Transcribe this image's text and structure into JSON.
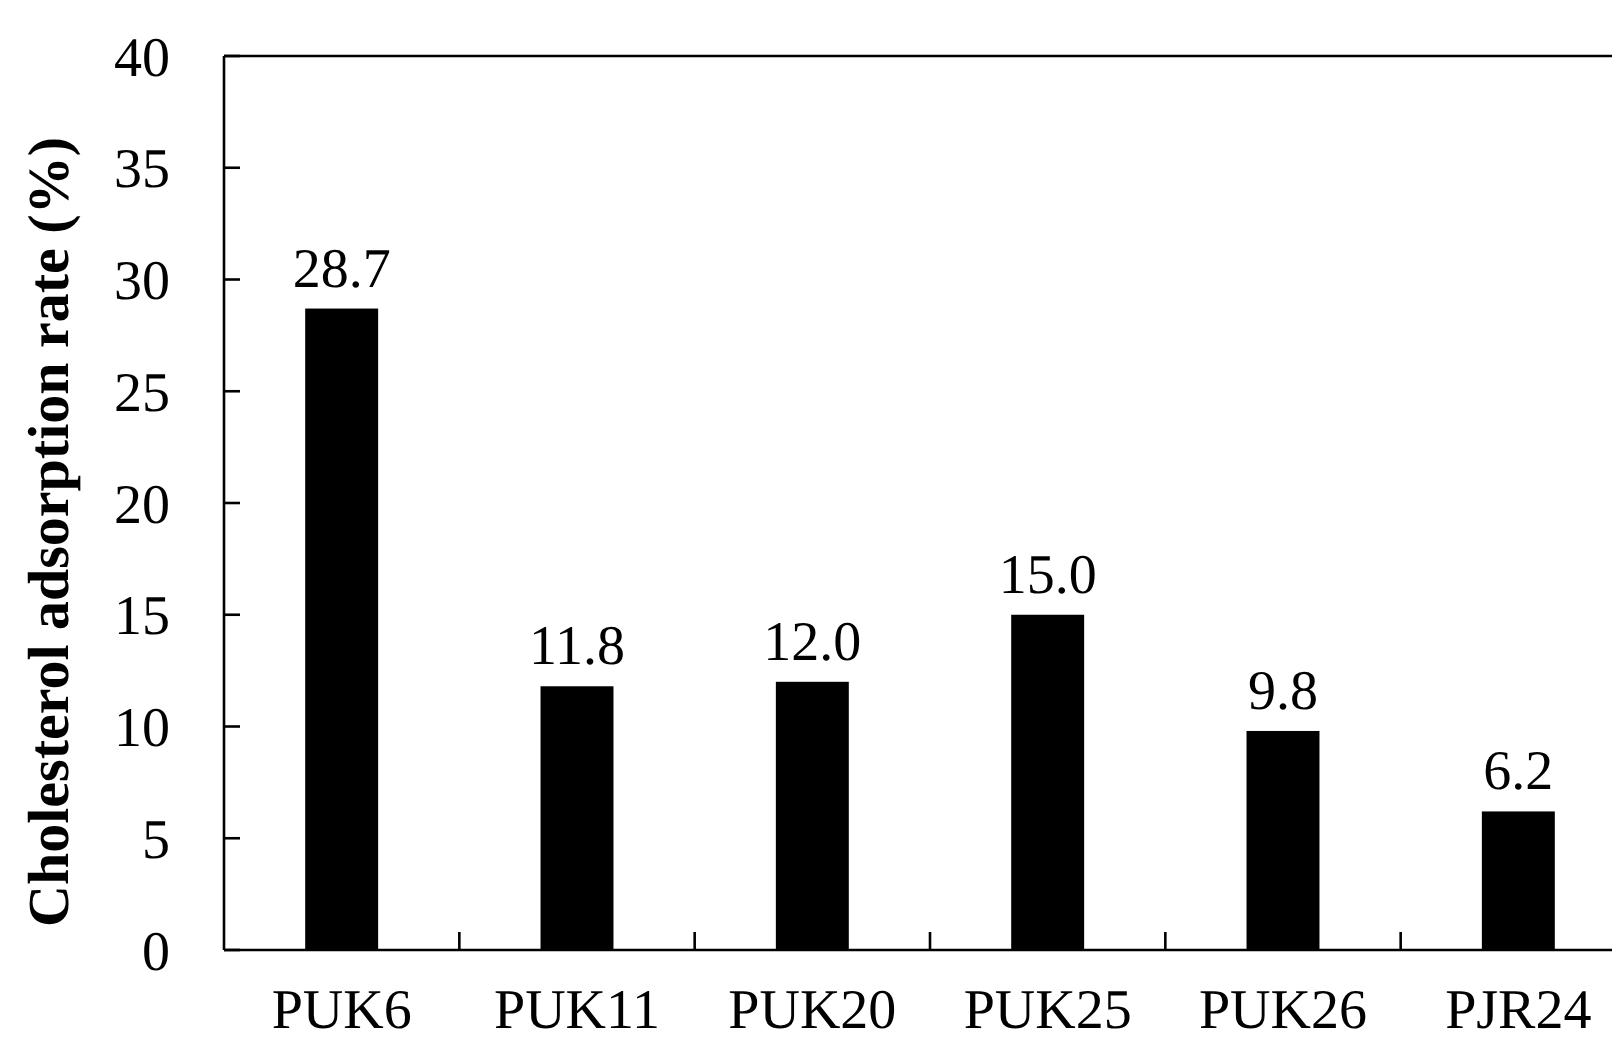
{
  "chart_data": {
    "type": "bar",
    "ylabel": "Cholesterol adsorption rate (%)",
    "categories": [
      "PUK6",
      "PUK11",
      "PUK20",
      "PUK25",
      "PUK26",
      "PJR24"
    ],
    "values": [
      28.7,
      11.8,
      12.0,
      15.0,
      9.8,
      6.2
    ],
    "color": "#000000",
    "value_labels": [
      "28.7",
      "11.8",
      "12.0",
      "15.0",
      "9.8",
      "6.2"
    ],
    "ylim": [
      0,
      40
    ],
    "yticks": [
      0,
      5,
      10,
      15,
      20,
      25,
      30,
      35,
      40
    ]
  }
}
